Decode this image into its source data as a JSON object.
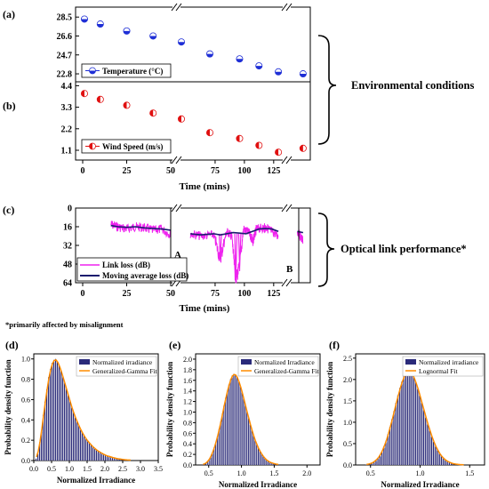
{
  "figure": {
    "env_label": "Environmental conditions",
    "opt_label": "Optical link performance*",
    "footnote": "*primarily affected by misalignment",
    "panel_letters": [
      "(a)",
      "(b)",
      "(c)",
      "(d)",
      "(e)",
      "(f)"
    ]
  },
  "colors": {
    "temperature_marker": "#1f2fd6",
    "wind_marker": "#e01010",
    "link_loss": "#ee22ee",
    "moving_avg": "#1a1a6e",
    "hist_dark": "#2a2a7a",
    "hist_light": "#c8c8d8",
    "fit": "#ff8c00"
  },
  "chart_data": [
    {
      "panel": "(a)",
      "type": "scatter",
      "xlabel": "",
      "ylabel": "",
      "ylim": [
        22.0,
        29.5
      ],
      "yticks": [
        "28.5",
        "26.6",
        "24.7",
        "22.8"
      ],
      "ytick_values": [
        28.5,
        26.6,
        24.7,
        22.8
      ],
      "legend_position": "bottom-left",
      "series": [
        {
          "name": "Temperature (°C)",
          "x": [
            1,
            10,
            25,
            40,
            55,
            77,
            100,
            115,
            130,
            145
          ],
          "y": [
            28.3,
            27.8,
            27.1,
            26.6,
            26.0,
            24.8,
            24.3,
            23.6,
            23.0,
            22.8
          ]
        }
      ]
    },
    {
      "panel": "(b)",
      "type": "scatter",
      "xlabel": "Time (mins)",
      "ylabel": "",
      "ylim": [
        0.6,
        4.6
      ],
      "yticks": [
        "4.4",
        "3.3",
        "2.2",
        "1.1"
      ],
      "ytick_values": [
        4.4,
        3.3,
        2.2,
        1.1
      ],
      "xticks": [
        "0",
        "25",
        "50",
        "75",
        "100",
        "125"
      ],
      "xtick_values": [
        0,
        25,
        50,
        75,
        100,
        125
      ],
      "legend_position": "bottom-left",
      "series": [
        {
          "name": "Wind Speed (m/s)",
          "x": [
            1,
            10,
            25,
            40,
            55,
            77,
            100,
            115,
            130,
            145
          ],
          "y": [
            4.0,
            3.7,
            3.4,
            3.0,
            2.7,
            2.0,
            1.7,
            1.35,
            1.0,
            1.2
          ]
        }
      ]
    },
    {
      "panel": "(c)",
      "type": "line",
      "xlabel": "Time (mins)",
      "ylabel": "",
      "ylim": [
        0,
        64
      ],
      "yticks": [
        "0",
        "16",
        "32",
        "48",
        "64"
      ],
      "ytick_values": [
        0,
        16,
        32,
        48,
        64
      ],
      "xticks": [
        "0",
        "25",
        "50",
        "75",
        "100",
        "125"
      ],
      "xtick_values": [
        0,
        25,
        50,
        75,
        100,
        125
      ],
      "annotations": [
        "A",
        "B"
      ],
      "legend_position": "bottom-left",
      "series": [
        {
          "name": "Link loss (dB)",
          "x": [
            16,
            20,
            25,
            30,
            35,
            40,
            45,
            50,
            62,
            70,
            80,
            85,
            90,
            94,
            97,
            100,
            103,
            108,
            110,
            113,
            118,
            121,
            125,
            130,
            140,
            145
          ],
          "y": [
            14,
            16,
            18,
            16,
            17,
            19,
            18,
            23,
            22,
            24,
            23,
            44,
            20,
            24,
            62,
            50,
            18,
            22,
            30,
            18,
            17,
            17,
            20,
            24,
            20,
            28
          ]
        },
        {
          "name": "Moving average loss (dB)",
          "x": [
            16,
            20,
            25,
            30,
            35,
            40,
            45,
            50,
            62,
            70,
            80,
            85,
            90,
            95,
            100,
            105,
            110,
            115,
            120,
            125,
            130,
            140,
            145
          ],
          "y": [
            15,
            16,
            16.5,
            16,
            17,
            17.5,
            18,
            19,
            22,
            23,
            22,
            23,
            22,
            21,
            21.5,
            22,
            20,
            18,
            17.5,
            18,
            20,
            20,
            21
          ]
        }
      ]
    },
    {
      "panel": "(d)",
      "type": "bar",
      "xlabel": "Normalized Irradiance",
      "ylabel": "Probability density function",
      "xlim": [
        0.0,
        3.5
      ],
      "ylim": [
        0,
        1.05
      ],
      "xticks": [
        "0.0",
        "0.5",
        "1.0",
        "1.5",
        "2.0",
        "2.5",
        "3.0",
        "3.5"
      ],
      "yticks": [
        "0.0",
        "0.2",
        "0.4",
        "0.6",
        "0.8",
        "1.0"
      ],
      "legend_position": "top-right",
      "fit": {
        "name": "Generalized-Gamma Fit",
        "peak_x": 0.8,
        "peak_y": 1.0
      },
      "histogram": {
        "name": "Normalized irradiance",
        "bin_start": 0.05,
        "bin_width": 0.05,
        "density": [
          0.02,
          0.08,
          0.18,
          0.3,
          0.45,
          0.58,
          0.7,
          0.82,
          0.9,
          0.96,
          0.99,
          1.0,
          0.97,
          0.93,
          0.88,
          0.82,
          0.76,
          0.7,
          0.64,
          0.58,
          0.52,
          0.47,
          0.42,
          0.38,
          0.34,
          0.3,
          0.27,
          0.24,
          0.21,
          0.19,
          0.17,
          0.15,
          0.13,
          0.12,
          0.1,
          0.09,
          0.08,
          0.07,
          0.06,
          0.05,
          0.045,
          0.04,
          0.035,
          0.03,
          0.025,
          0.02,
          0.018,
          0.015,
          0.012,
          0.01,
          0.008,
          0.006,
          0.005,
          0.004
        ]
      }
    },
    {
      "panel": "(e)",
      "type": "bar",
      "xlabel": "Normalized Irradiance",
      "ylabel": "Probability density function",
      "xlim": [
        0.3,
        2.2
      ],
      "ylim": [
        0,
        2.1
      ],
      "xticks": [
        "0.5",
        "1.0",
        "1.5",
        "2.0"
      ],
      "yticks": [
        "0.0",
        "0.2",
        "0.4",
        "0.6",
        "0.8",
        "1.0",
        "1.2",
        "1.4",
        "1.6",
        "1.8",
        "2.0"
      ],
      "legend_position": "top-right",
      "fit": {
        "name": "Generalized-Gamma Fit",
        "peak_x": 0.95,
        "peak_y": 1.72
      },
      "histogram": {
        "name": "Normalized Irradiance",
        "bin_start": 0.4,
        "bin_width": 0.025,
        "density": [
          0.01,
          0.02,
          0.04,
          0.07,
          0.11,
          0.17,
          0.24,
          0.33,
          0.43,
          0.55,
          0.68,
          0.82,
          0.97,
          1.12,
          1.27,
          1.4,
          1.52,
          1.62,
          1.69,
          1.72,
          1.71,
          1.66,
          1.58,
          1.48,
          1.37,
          1.25,
          1.12,
          1.0,
          0.88,
          0.76,
          0.65,
          0.55,
          0.46,
          0.38,
          0.31,
          0.25,
          0.2,
          0.16,
          0.12,
          0.09,
          0.07,
          0.05,
          0.04,
          0.03,
          0.02,
          0.015,
          0.01
        ]
      }
    },
    {
      "panel": "(f)",
      "type": "bar",
      "xlabel": "Normalized Irradiance",
      "ylabel": "Probability density function",
      "xlim": [
        0.35,
        1.65
      ],
      "ylim": [
        0,
        2.6
      ],
      "xticks": [
        "0.5",
        "1.0",
        "1.5"
      ],
      "yticks": [
        "0.0",
        "0.5",
        "1.0",
        "1.5",
        "2.0",
        "2.5"
      ],
      "legend_position": "top-right",
      "fit": {
        "name": "Lognormal Fit",
        "peak_x": 0.97,
        "peak_y": 2.2
      },
      "histogram": {
        "name": "Normalized irradiance",
        "bin_start": 0.45,
        "bin_width": 0.02,
        "density": [
          0.01,
          0.02,
          0.03,
          0.05,
          0.08,
          0.12,
          0.17,
          0.24,
          0.33,
          0.44,
          0.57,
          0.72,
          0.89,
          1.07,
          1.26,
          1.45,
          1.63,
          1.8,
          1.95,
          2.07,
          2.16,
          2.2,
          2.19,
          2.14,
          2.05,
          1.93,
          1.78,
          1.62,
          1.45,
          1.28,
          1.11,
          0.95,
          0.8,
          0.66,
          0.54,
          0.43,
          0.34,
          0.26,
          0.2,
          0.15,
          0.11,
          0.08,
          0.06,
          0.04,
          0.03,
          0.02,
          0.015,
          0.01,
          0.008,
          0.005
        ]
      }
    }
  ]
}
